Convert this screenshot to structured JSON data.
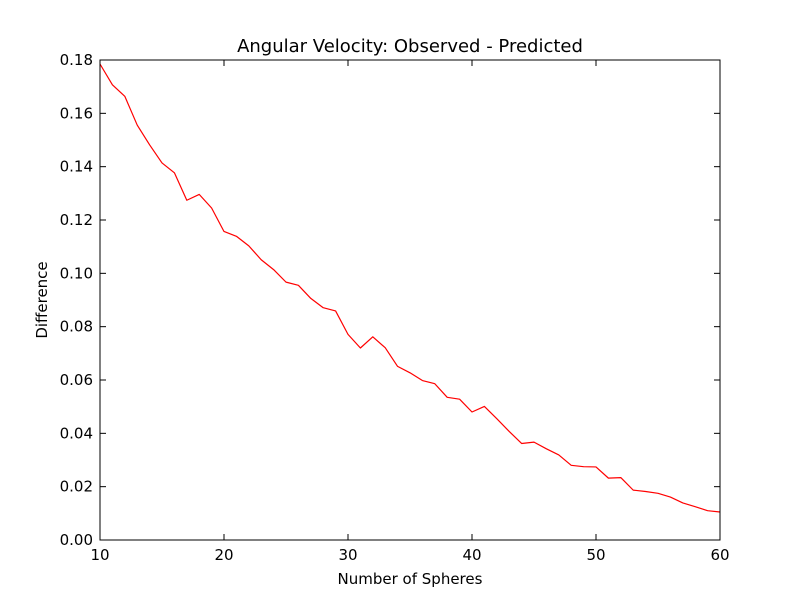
{
  "chart_data": {
    "type": "line",
    "title": "Angular Velocity: Observed - Predicted",
    "xlabel": "Number of Spheres",
    "ylabel": "Difference",
    "xlim": [
      10,
      60
    ],
    "ylim": [
      0.0,
      0.18
    ],
    "grid": false,
    "x_ticks": [
      10,
      20,
      30,
      40,
      50,
      60
    ],
    "x_tick_labels": [
      "10",
      "20",
      "30",
      "40",
      "50",
      "60"
    ],
    "y_ticks": [
      0.0,
      0.02,
      0.04,
      0.06,
      0.08,
      0.1,
      0.12,
      0.14,
      0.16,
      0.18
    ],
    "y_tick_labels": [
      "0.00",
      "0.02",
      "0.04",
      "0.06",
      "0.08",
      "0.10",
      "0.12",
      "0.14",
      "0.16",
      "0.18"
    ],
    "series": [
      {
        "color": "#ff0000",
        "x": [
          10,
          11,
          12,
          13,
          14,
          15,
          16,
          17,
          18,
          19,
          20,
          21,
          22,
          23,
          24,
          25,
          26,
          27,
          28,
          29,
          30,
          31,
          32,
          33,
          34,
          35,
          36,
          37,
          38,
          39,
          40,
          41,
          42,
          43,
          44,
          45,
          46,
          47,
          48,
          49,
          50,
          51,
          52,
          53,
          54,
          55,
          56,
          57,
          58,
          59,
          60
        ],
        "y": [
          0.1785,
          0.1707,
          0.1664,
          0.1556,
          0.1482,
          0.1414,
          0.1377,
          0.1274,
          0.1296,
          0.1245,
          0.1157,
          0.1139,
          0.1103,
          0.1051,
          0.1014,
          0.0967,
          0.0955,
          0.0906,
          0.0871,
          0.0859,
          0.0771,
          0.072,
          0.0762,
          0.0721,
          0.0651,
          0.0627,
          0.0598,
          0.0586,
          0.0535,
          0.0528,
          0.048,
          0.0501,
          0.0455,
          0.0407,
          0.0362,
          0.0367,
          0.0342,
          0.0319,
          0.028,
          0.0275,
          0.0274,
          0.0232,
          0.0234,
          0.0187,
          0.0182,
          0.0175,
          0.0161,
          0.0139,
          0.0125,
          0.011,
          0.0105
        ]
      }
    ]
  }
}
